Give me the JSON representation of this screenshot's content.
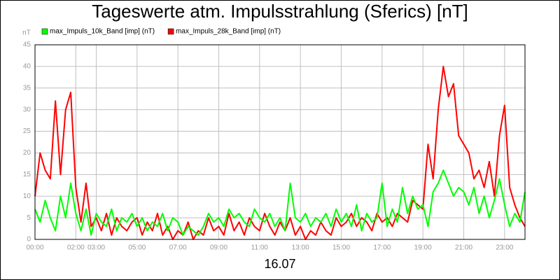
{
  "chart_data": {
    "type": "line",
    "title": "Tageswerte atm. Impulsstrahlung (Sferics) [nT]",
    "y_label": "nT",
    "x_label": "16.07",
    "x": [
      0,
      0.25,
      0.5,
      0.75,
      1,
      1.25,
      1.5,
      1.75,
      2,
      2.25,
      2.5,
      2.75,
      3,
      3.25,
      3.5,
      3.75,
      4,
      4.25,
      4.5,
      4.75,
      5,
      5.25,
      5.5,
      5.75,
      6,
      6.25,
      6.5,
      6.75,
      7,
      7.25,
      7.5,
      7.75,
      8,
      8.25,
      8.5,
      8.75,
      9,
      9.25,
      9.5,
      9.75,
      10,
      10.25,
      10.5,
      10.75,
      11,
      11.25,
      11.5,
      11.75,
      12,
      12.25,
      12.5,
      12.75,
      13,
      13.25,
      13.5,
      13.75,
      14,
      14.25,
      14.5,
      14.75,
      15,
      15.25,
      15.5,
      15.75,
      16,
      16.25,
      16.5,
      16.75,
      17,
      17.25,
      17.5,
      17.75,
      18,
      18.25,
      18.5,
      18.75,
      19,
      19.25,
      19.5,
      19.75,
      20,
      20.25,
      20.5,
      20.75,
      21,
      21.25,
      21.5,
      21.75,
      22,
      22.25,
      22.5,
      22.75,
      23,
      23.25,
      23.5,
      23.75,
      24
    ],
    "series": [
      {
        "name": "max_Impuls_10k_Band [imp] (nT)",
        "color": "#00ff00",
        "values": [
          7,
          4,
          9,
          5,
          2,
          10,
          5,
          13,
          6,
          2,
          7,
          1,
          6,
          4,
          3,
          7,
          2,
          5,
          4,
          6,
          3,
          5,
          2,
          4,
          3,
          6,
          2,
          5,
          4,
          1,
          3,
          2,
          1,
          3,
          6,
          4,
          5,
          3,
          7,
          5,
          6,
          4,
          3,
          7,
          5,
          4,
          6,
          3,
          5,
          2,
          13,
          5,
          4,
          6,
          3,
          5,
          4,
          6,
          3,
          7,
          4,
          6,
          3,
          8,
          2,
          6,
          4,
          5,
          13,
          3,
          7,
          4,
          12,
          6,
          10,
          7,
          8,
          3,
          11,
          13,
          16,
          13,
          10,
          12,
          11,
          8,
          12,
          6,
          10,
          5,
          9,
          14,
          8,
          3,
          6,
          4,
          11
        ]
      },
      {
        "name": "max_Impuls_28k_Band [imp] (nT)",
        "color": "#ff0000",
        "values": [
          10,
          20,
          16,
          14,
          32,
          15,
          30,
          34,
          12,
          4,
          13,
          3,
          5,
          2,
          6,
          1,
          5,
          3,
          2,
          4,
          5,
          1,
          4,
          2,
          6,
          1,
          3,
          0,
          2,
          1,
          4,
          0,
          2,
          1,
          5,
          2,
          3,
          1,
          6,
          2,
          4,
          1,
          5,
          3,
          2,
          6,
          3,
          1,
          4,
          2,
          5,
          1,
          3,
          0,
          2,
          1,
          4,
          2,
          1,
          5,
          3,
          4,
          6,
          3,
          5,
          4,
          2,
          6,
          4,
          5,
          3,
          6,
          5,
          4,
          9,
          8,
          7,
          22,
          14,
          30,
          40,
          33,
          36,
          24,
          22,
          20,
          14,
          16,
          12,
          18,
          10,
          24,
          31,
          12,
          8,
          5,
          3
        ]
      }
    ],
    "xlim": [
      0,
      24
    ],
    "xticks": [
      {
        "value": 0,
        "label": "00:00"
      },
      {
        "value": 2,
        "label": "02:00"
      },
      {
        "value": 3,
        "label": "03:00"
      },
      {
        "value": 5,
        "label": "05:00"
      },
      {
        "value": 7,
        "label": "07:00"
      },
      {
        "value": 9,
        "label": "09:00"
      },
      {
        "value": 11,
        "label": "11:00"
      },
      {
        "value": 13,
        "label": "13:00"
      },
      {
        "value": 15,
        "label": "15:00"
      },
      {
        "value": 17,
        "label": "17:00"
      },
      {
        "value": 19,
        "label": "19:00"
      },
      {
        "value": 21,
        "label": "21:00"
      },
      {
        "value": 23,
        "label": "23:00"
      }
    ],
    "ylim": [
      0,
      45
    ],
    "yticks": [
      0,
      5,
      10,
      15,
      20,
      25,
      30,
      35,
      40,
      45
    ],
    "grid": true
  }
}
